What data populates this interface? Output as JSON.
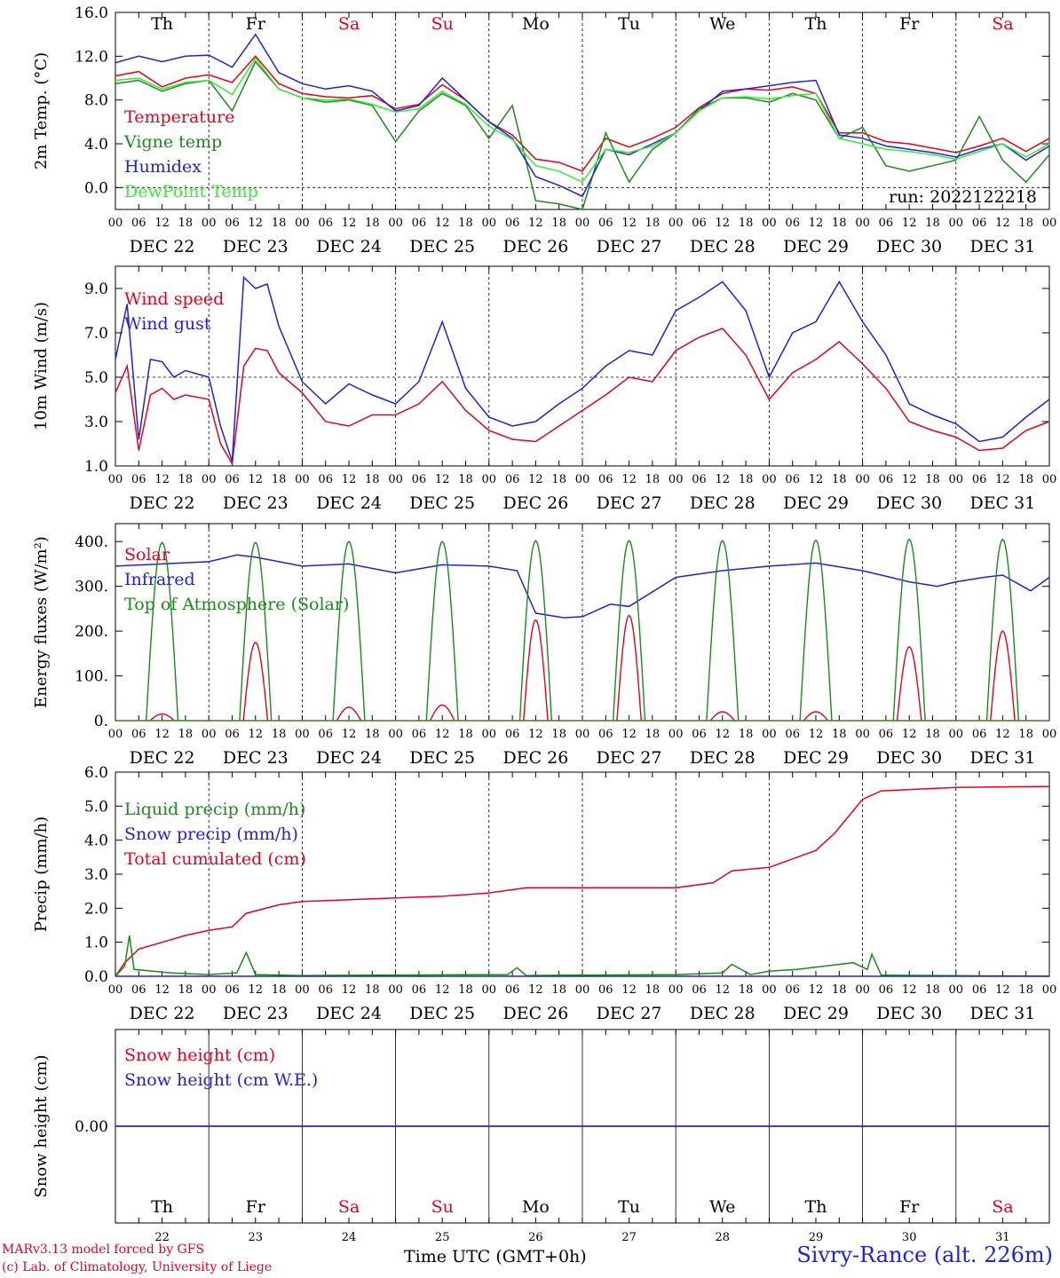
{
  "chart_data": [
    {
      "type": "line",
      "ylabel": "2m Temp. (°C)",
      "ylim": [
        -2,
        16
      ],
      "yticks": [
        "16.0",
        "12.0",
        "8.0",
        "4.0",
        "0.0"
      ],
      "yticks_values": [
        16,
        12,
        8,
        4,
        0
      ],
      "dashed_y": 0,
      "weekdays": [
        "Th",
        "Fr",
        "Sa",
        "Su",
        "Mo",
        "Tu",
        "We",
        "Th",
        "Fr",
        "Sa"
      ],
      "run_label": "run: 2022122218",
      "legend": [
        {
          "name": "Temperature",
          "color": "#e8001c"
        },
        {
          "name": "Vigne temp",
          "color": "#1a8a1a"
        },
        {
          "name": "Humidex",
          "color": "#2020e0"
        },
        {
          "name": "DewPoint Temp",
          "color": "#33ee33"
        }
      ],
      "series": [
        {
          "name": "Temperature",
          "color": "#e8001c",
          "x_days": [
            0,
            0.25,
            0.5,
            0.75,
            1,
            1.25,
            1.5,
            1.75,
            2,
            2.25,
            2.5,
            2.75,
            3,
            3.25,
            3.5,
            3.75,
            4,
            4.25,
            4.5,
            4.75,
            5,
            5.25,
            5.5,
            5.75,
            6,
            6.25,
            6.5,
            6.75,
            7,
            7.25,
            7.5,
            7.75,
            8,
            8.25,
            8.5,
            8.75,
            9,
            9.25,
            9.5,
            9.75,
            10
          ],
          "values": [
            10.2,
            10.6,
            9.2,
            10.0,
            10.3,
            9.6,
            12.0,
            9.5,
            8.6,
            8.3,
            8.2,
            8.4,
            7.2,
            7.6,
            9.4,
            8.0,
            6.0,
            4.8,
            2.6,
            2.3,
            1.5,
            4.5,
            3.7,
            4.5,
            5.5,
            7.3,
            8.6,
            9.0,
            8.9,
            9.2,
            8.6,
            5.0,
            5.0,
            4.2,
            4.0,
            3.6,
            3.2,
            3.8,
            4.5,
            3.3,
            4.5
          ]
        },
        {
          "name": "Vigne temp",
          "color": "#1a8a1a",
          "x_days": [
            0,
            0.25,
            0.5,
            0.75,
            1,
            1.25,
            1.5,
            1.75,
            2,
            2.25,
            2.5,
            2.75,
            3,
            3.25,
            3.5,
            3.75,
            4,
            4.25,
            4.5,
            4.75,
            5,
            5.25,
            5.5,
            5.75,
            6,
            6.25,
            6.5,
            6.75,
            7,
            7.25,
            7.5,
            7.75,
            8,
            8.25,
            8.5,
            8.75,
            9,
            9.25,
            9.5,
            9.75,
            10
          ],
          "values": [
            9.5,
            9.8,
            8.8,
            9.5,
            9.8,
            7.0,
            11.5,
            9.0,
            8.2,
            7.8,
            8.0,
            7.5,
            4.2,
            7.0,
            8.6,
            7.5,
            4.5,
            7.5,
            -1.2,
            -1.5,
            -2.0,
            5.0,
            0.5,
            3.5,
            5.0,
            7.2,
            8.2,
            8.2,
            7.8,
            8.6,
            8.0,
            4.5,
            5.5,
            2.0,
            1.5,
            2.0,
            2.5,
            6.5,
            2.5,
            0.5,
            3.0
          ]
        },
        {
          "name": "Humidex",
          "color": "#2020e0",
          "x_days": [
            0,
            0.25,
            0.5,
            0.75,
            1,
            1.25,
            1.5,
            1.75,
            2,
            2.25,
            2.5,
            2.75,
            3,
            3.25,
            3.5,
            3.75,
            4,
            4.25,
            4.5,
            4.75,
            5,
            5.25,
            5.5,
            5.75,
            6,
            6.25,
            6.5,
            6.75,
            7,
            7.25,
            7.5,
            7.75,
            8,
            8.25,
            8.5,
            8.75,
            9,
            9.25,
            9.5,
            9.75,
            10
          ],
          "values": [
            11.4,
            12.0,
            11.5,
            12.0,
            12.1,
            11.0,
            14.0,
            10.5,
            9.5,
            9.0,
            9.3,
            8.8,
            7.0,
            7.5,
            10.0,
            8.0,
            6.0,
            4.5,
            1.0,
            0.2,
            -0.8,
            3.5,
            3.0,
            4.0,
            5.0,
            7.0,
            8.8,
            9.0,
            9.3,
            9.6,
            9.8,
            4.8,
            4.5,
            3.8,
            3.5,
            3.2,
            2.8,
            3.5,
            4.0,
            2.5,
            3.8
          ]
        },
        {
          "name": "DewPoint Temp",
          "color": "#33ee33",
          "x_days": [
            0,
            0.25,
            0.5,
            0.75,
            1,
            1.25,
            1.5,
            1.75,
            2,
            2.25,
            2.5,
            2.75,
            3,
            3.25,
            3.5,
            3.75,
            4,
            4.25,
            4.5,
            4.75,
            5,
            5.25,
            5.5,
            5.75,
            6,
            6.25,
            6.5,
            6.75,
            7,
            7.25,
            7.5,
            7.75,
            8,
            8.25,
            8.5,
            8.75,
            9,
            9.25,
            9.5,
            9.75,
            10
          ],
          "values": [
            9.8,
            10.0,
            9.0,
            9.6,
            9.8,
            8.5,
            11.8,
            9.0,
            8.2,
            8.0,
            8.1,
            7.6,
            6.9,
            7.2,
            8.8,
            7.6,
            5.6,
            4.4,
            2.0,
            1.5,
            0.5,
            3.5,
            3.2,
            3.8,
            5.0,
            7.0,
            8.2,
            8.3,
            8.1,
            8.4,
            8.6,
            4.5,
            4.0,
            3.5,
            3.3,
            3.0,
            2.6,
            3.3,
            4.0,
            2.8,
            4.0
          ]
        }
      ]
    },
    {
      "type": "line",
      "ylabel": "10m Wind (m/s)",
      "ylim": [
        1,
        10
      ],
      "yticks": [
        "9.0",
        "7.0",
        "5.0",
        "3.0",
        "1.0"
      ],
      "yticks_values": [
        9,
        7,
        5,
        3,
        1
      ],
      "dashed_y": 5,
      "legend": [
        {
          "name": "Wind speed",
          "color": "#e8001c"
        },
        {
          "name": "Wind gust",
          "color": "#2020e0"
        }
      ],
      "series": [
        {
          "name": "Wind speed",
          "color": "#e8001c",
          "x_days": [
            0,
            0.125,
            0.25,
            0.375,
            0.5,
            0.625,
            0.75,
            1,
            1.125,
            1.25,
            1.375,
            1.5,
            1.625,
            1.75,
            2,
            2.25,
            2.5,
            2.75,
            3,
            3.25,
            3.5,
            3.75,
            4,
            4.25,
            4.5,
            4.75,
            5,
            5.25,
            5.5,
            5.75,
            6,
            6.25,
            6.5,
            6.75,
            7,
            7.25,
            7.5,
            7.75,
            8,
            8.25,
            8.5,
            8.75,
            9,
            9.25,
            9.5,
            9.75,
            10
          ],
          "values": [
            4.3,
            5.5,
            1.7,
            4.2,
            4.5,
            4.0,
            4.2,
            4.0,
            2.0,
            1.1,
            5.5,
            6.3,
            6.2,
            5.2,
            4.3,
            3.0,
            2.8,
            3.3,
            3.3,
            3.8,
            4.8,
            3.5,
            2.6,
            2.2,
            2.1,
            2.8,
            3.5,
            4.2,
            5.0,
            4.8,
            6.2,
            6.8,
            7.2,
            6.0,
            4.0,
            5.2,
            5.8,
            6.6,
            5.6,
            4.5,
            3.0,
            2.6,
            2.3,
            1.7,
            1.8,
            2.6,
            3.0
          ]
        },
        {
          "name": "Wind gust",
          "color": "#2020e0",
          "x_days": [
            0,
            0.125,
            0.25,
            0.375,
            0.5,
            0.625,
            0.75,
            1,
            1.125,
            1.25,
            1.375,
            1.5,
            1.625,
            1.75,
            2,
            2.25,
            2.5,
            2.75,
            3,
            3.25,
            3.5,
            3.75,
            4,
            4.25,
            4.5,
            4.75,
            5,
            5.25,
            5.5,
            5.75,
            6,
            6.25,
            6.5,
            6.75,
            7,
            7.25,
            7.5,
            7.75,
            8,
            8.25,
            8.5,
            8.75,
            9,
            9.25,
            9.5,
            9.75,
            10
          ],
          "values": [
            5.8,
            8.3,
            2.2,
            5.8,
            5.7,
            5.0,
            5.3,
            5.0,
            2.8,
            1.2,
            9.5,
            9.0,
            9.2,
            7.3,
            4.8,
            3.8,
            4.7,
            4.2,
            3.8,
            4.8,
            7.5,
            4.5,
            3.2,
            2.8,
            3.0,
            3.8,
            4.5,
            5.5,
            6.2,
            6.0,
            8.0,
            8.6,
            9.3,
            8.0,
            5.0,
            7.0,
            7.5,
            9.3,
            7.5,
            6.0,
            3.8,
            3.3,
            2.9,
            2.1,
            2.3,
            3.2,
            4.0
          ]
        }
      ]
    },
    {
      "type": "line",
      "ylabel": "Energy fluxes (W/m²)",
      "ylim": [
        0,
        440
      ],
      "yticks": [
        "400.",
        "300.",
        "200.",
        "100.",
        "0."
      ],
      "yticks_values": [
        400,
        300,
        200,
        100,
        0
      ],
      "legend": [
        {
          "name": "Solar",
          "color": "#e8001c"
        },
        {
          "name": "Infrared",
          "color": "#2020e0"
        },
        {
          "name": "Top of Atmosphere (Solar)",
          "color": "#1a8a1a"
        }
      ],
      "series": [
        {
          "name": "Solar",
          "color": "#e8001c",
          "daily_peaks": [
            15,
            175,
            30,
            35,
            225,
            235,
            20,
            20,
            165,
            200
          ]
        },
        {
          "name": "Infrared",
          "color": "#2020e0",
          "x_days": [
            0,
            0.5,
            1,
            1.3,
            1.5,
            2,
            2.5,
            3,
            3.5,
            4,
            4.3,
            4.5,
            4.8,
            5,
            5.3,
            5.5,
            6,
            6.5,
            7,
            7.5,
            8,
            8.3,
            8.5,
            8.8,
            9,
            9.3,
            9.5,
            9.8,
            10
          ],
          "values": [
            345,
            350,
            355,
            370,
            365,
            345,
            350,
            330,
            348,
            345,
            335,
            240,
            230,
            232,
            260,
            255,
            320,
            335,
            345,
            352,
            335,
            320,
            310,
            300,
            310,
            320,
            325,
            290,
            320
          ]
        },
        {
          "name": "Top of Atmosphere (Solar)",
          "color": "#1a8a1a",
          "daily_peaks": [
            398,
            398,
            400,
            400,
            402,
            402,
            402,
            403,
            405,
            405
          ]
        }
      ]
    },
    {
      "type": "line",
      "ylabel": "Precip (mm/h)",
      "ylim": [
        0,
        6
      ],
      "yticks": [
        "6.0",
        "5.0",
        "4.0",
        "3.0",
        "2.0",
        "1.0",
        "0.0"
      ],
      "yticks_values": [
        6,
        5,
        4,
        3,
        2,
        1,
        0
      ],
      "legend": [
        {
          "name": "Liquid precip (mm/h)",
          "color": "#1a8a1a"
        },
        {
          "name": "Snow precip (mm/h)",
          "color": "#2020e0"
        },
        {
          "name": "Total cumulated (cm)",
          "color": "#e8001c"
        }
      ],
      "series": [
        {
          "name": "Total cumulated (cm)",
          "color": "#e8001c",
          "x_days": [
            0,
            0.1,
            0.25,
            0.5,
            0.75,
            1,
            1.25,
            1.4,
            1.75,
            2,
            2.5,
            3,
            3.5,
            4,
            4.4,
            5,
            5.5,
            6,
            6.4,
            6.6,
            7,
            7.2,
            7.5,
            7.7,
            8,
            8.2,
            9,
            10
          ],
          "values": [
            0,
            0.4,
            0.8,
            1.0,
            1.2,
            1.35,
            1.45,
            1.85,
            2.1,
            2.2,
            2.25,
            2.3,
            2.35,
            2.45,
            2.6,
            2.6,
            2.6,
            2.6,
            2.75,
            3.1,
            3.2,
            3.4,
            3.7,
            4.2,
            5.2,
            5.45,
            5.55,
            5.58
          ]
        },
        {
          "name": "Liquid precip (mm/h)",
          "color": "#1a8a1a",
          "x_days": [
            0,
            0.1,
            0.15,
            0.2,
            0.4,
            0.6,
            1,
            1.3,
            1.4,
            1.5,
            2,
            4.2,
            4.3,
            4.4,
            6,
            6.5,
            6.6,
            6.8,
            7,
            7.3,
            7.6,
            7.9,
            8.05,
            8.1,
            8.2,
            10
          ],
          "values": [
            0,
            0.3,
            1.2,
            0.2,
            0.15,
            0.1,
            0.05,
            0.1,
            0.7,
            0.05,
            0.02,
            0.05,
            0.25,
            0.02,
            0.05,
            0.1,
            0.35,
            0.05,
            0.15,
            0.2,
            0.3,
            0.4,
            0.2,
            0.65,
            0.03,
            0
          ]
        },
        {
          "name": "Snow precip (mm/h)",
          "color": "#2020e0",
          "x_days": [
            0,
            10
          ],
          "values": [
            0,
            0
          ]
        }
      ]
    },
    {
      "type": "line",
      "ylabel": "Snow height (cm)",
      "ylim": [
        -1,
        1
      ],
      "yticks": [
        "0.00"
      ],
      "yticks_values": [
        0
      ],
      "weekdays": [
        "Th",
        "Fr",
        "Sa",
        "Su",
        "Mo",
        "Tu",
        "We",
        "Th",
        "Fr",
        "Sa"
      ],
      "daynums": [
        "22",
        "23",
        "24",
        "25",
        "26",
        "27",
        "28",
        "29",
        "30",
        "31"
      ],
      "legend": [
        {
          "name": "Snow height (cm)",
          "color": "#e8001c"
        },
        {
          "name": "Snow height (cm W.E.)",
          "color": "#2020e0"
        }
      ],
      "series": [
        {
          "name": "Snow height (cm)",
          "color": "#e8001c",
          "x_days": [
            0,
            10
          ],
          "values": [
            0,
            0
          ]
        },
        {
          "name": "Snow height (cm W.E.)",
          "color": "#2020e0",
          "x_days": [
            0,
            10
          ],
          "values": [
            0,
            0
          ]
        }
      ]
    }
  ],
  "x_axis": {
    "hour_ticks": [
      "00",
      "06",
      "12",
      "18"
    ],
    "final_tick": "00",
    "day_labels": [
      "DEC 22",
      "DEC 23",
      "DEC 24",
      "DEC 25",
      "DEC 26",
      "DEC 27",
      "DEC 28",
      "DEC 29",
      "DEC 30",
      "DEC 31"
    ]
  },
  "colors": {
    "weekday": "#000000",
    "weekend": "#e8001c",
    "dashed": "#000000"
  },
  "footer": {
    "model_line": "MARv3.13 model forced by GFS",
    "copyright_line": "(c) Lab. of Climatology, University of Liege",
    "xlabel": "Time UTC (GMT+0h)",
    "station": "Sivry-Rance (alt. 226m)"
  }
}
